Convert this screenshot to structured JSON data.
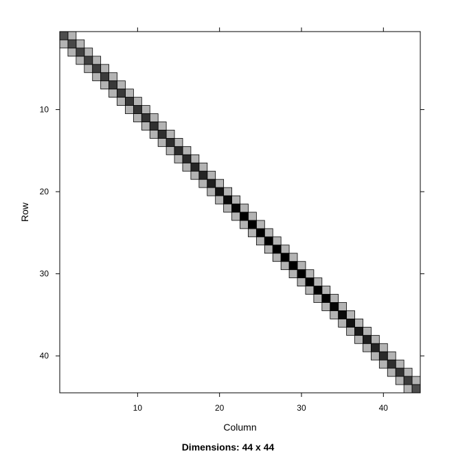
{
  "chart_data": {
    "type": "heatmap",
    "title": "",
    "caption": "Dimensions: 44 x 44",
    "xlabel": "Column",
    "ylabel": "Row",
    "xlim": [
      0.5,
      44.5
    ],
    "ylim": [
      0.5,
      44.5
    ],
    "y_inverted": true,
    "xticks": [
      10,
      20,
      30,
      40
    ],
    "yticks": [
      10,
      20,
      30,
      40
    ],
    "grid": false,
    "rows": 44,
    "cols": 44,
    "structure": "tridiagonal",
    "diagonal_values": [
      0.7,
      0.72,
      0.74,
      0.75,
      0.76,
      0.77,
      0.78,
      0.78,
      0.79,
      0.8,
      0.8,
      0.81,
      0.82,
      0.82,
      0.83,
      0.84,
      0.85,
      0.86,
      0.88,
      0.92,
      0.96,
      0.98,
      1.0,
      1.0,
      1.0,
      1.0,
      1.0,
      1.0,
      1.0,
      1.0,
      1.0,
      1.0,
      1.0,
      0.98,
      0.96,
      0.93,
      0.9,
      0.88,
      0.86,
      0.84,
      0.82,
      0.8,
      0.77,
      0.7
    ],
    "offdiagonal_value": 0.3,
    "colors": {
      "low": "#ffffff",
      "high": "#000000",
      "offdiagonal": "#b3b3b3",
      "cell_border": "#000000"
    }
  }
}
